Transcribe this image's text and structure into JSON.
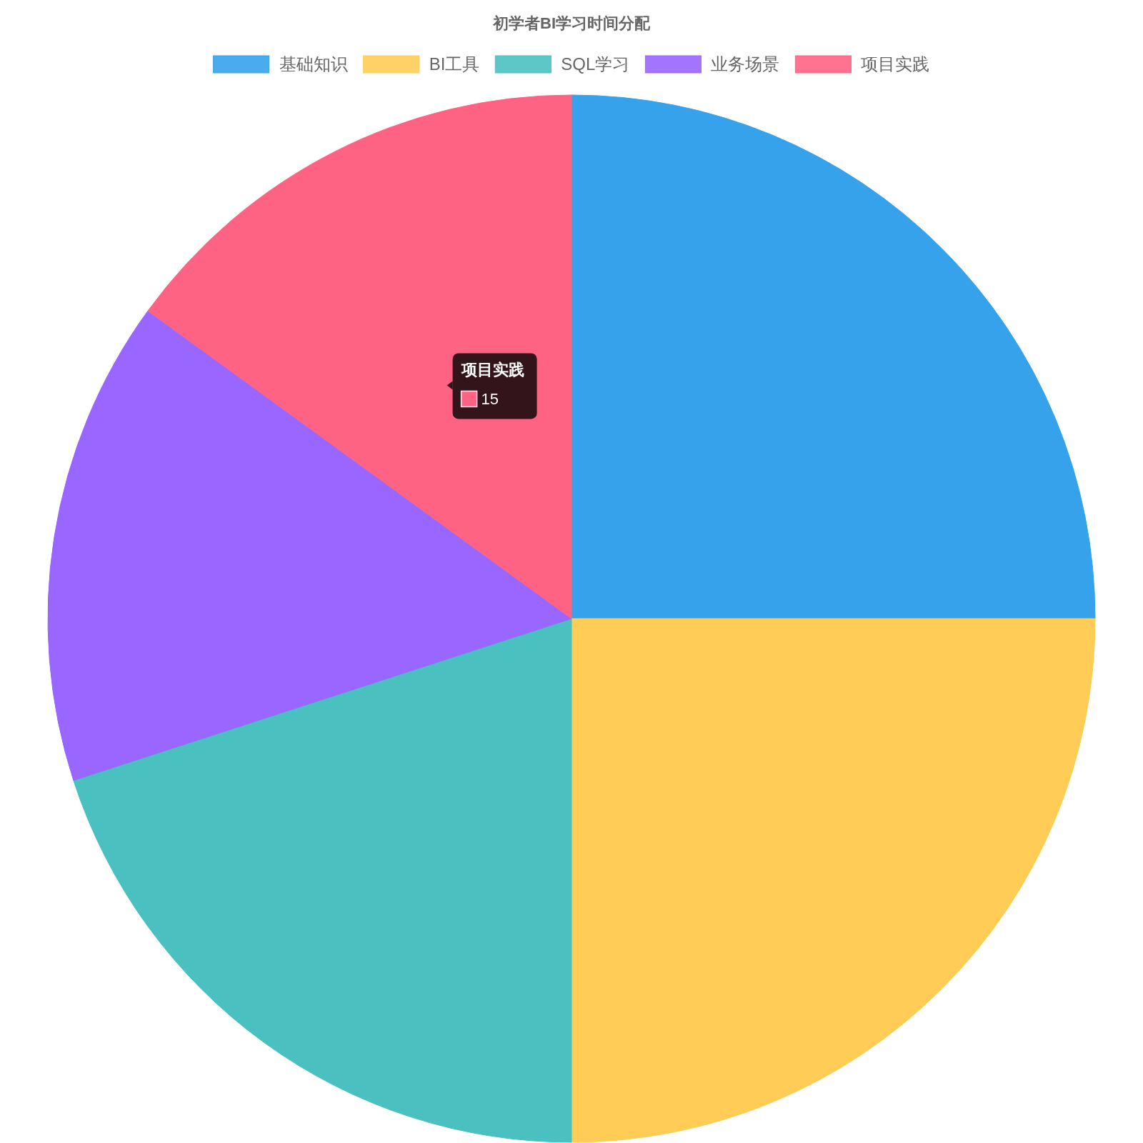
{
  "chart_data": {
    "type": "pie",
    "title": "初学者BI学习时间分配",
    "categories": [
      "基础知识",
      "BI工具",
      "SQL学习",
      "业务场景",
      "项目实践"
    ],
    "values": [
      25,
      25,
      20,
      15,
      15
    ],
    "colors": [
      "#36a2eb",
      "#ffcd56",
      "#4bc0c0",
      "#9966ff",
      "#ff6384"
    ],
    "value_labels": [
      null,
      null,
      null,
      null,
      "15"
    ],
    "legend": "top"
  }
}
